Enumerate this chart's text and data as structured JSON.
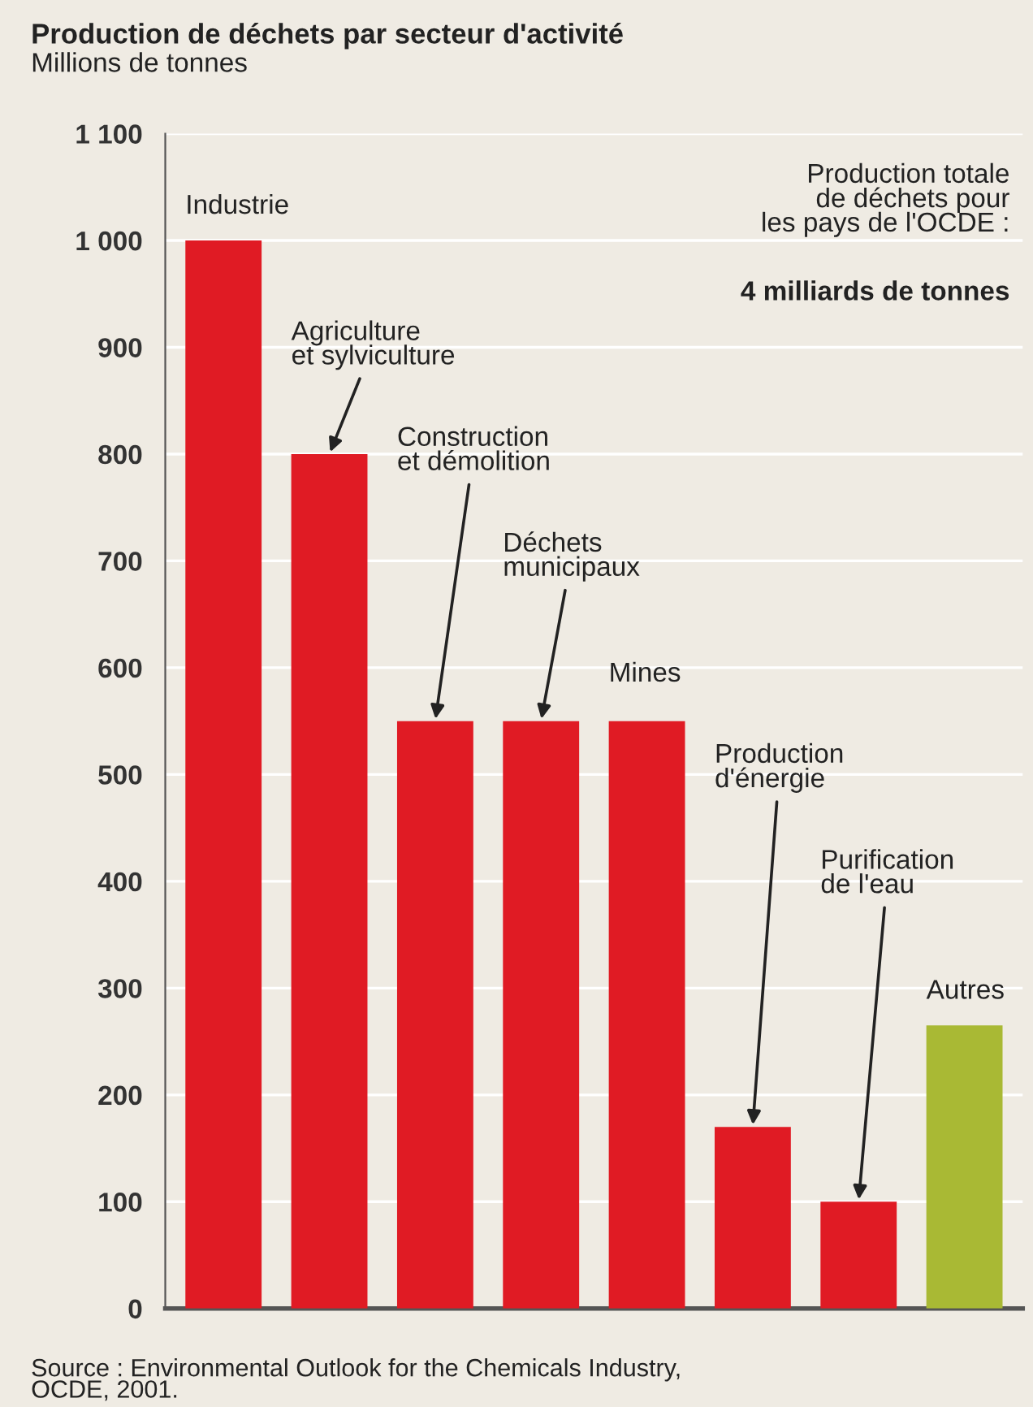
{
  "chart_data": {
    "type": "bar",
    "title": "Production de déchets par secteur d'activité",
    "ylabel": "Millions de tonnes",
    "categories": [
      "Industrie",
      "Agriculture\net sylviculture",
      "Construction\net démolition",
      "Déchets\nmunicipaux",
      "Mines",
      "Production\nd'énergie",
      "Purification\nde l'eau",
      "Autres"
    ],
    "values": [
      1000,
      800,
      550,
      550,
      550,
      170,
      100,
      265
    ],
    "colors": [
      "#e01b24",
      "#e01b24",
      "#e01b24",
      "#e01b24",
      "#e01b24",
      "#e01b24",
      "#e01b24",
      "#a9b934"
    ],
    "ylim": [
      0,
      1100
    ],
    "yticks": [
      0,
      100,
      200,
      300,
      400,
      500,
      600,
      700,
      800,
      900,
      {
        "value": 1000,
        "label": "1 000"
      },
      {
        "value": 1100,
        "label": "1 100"
      }
    ],
    "grid": "y",
    "annotations": [
      "Production totale\nde déchets pour\nles pays de l'OCDE :",
      "4 milliards de tonnes",
      "Source : Environmental Outlook for the Chemicals Industry,\nOCDE, 2001."
    ]
  }
}
